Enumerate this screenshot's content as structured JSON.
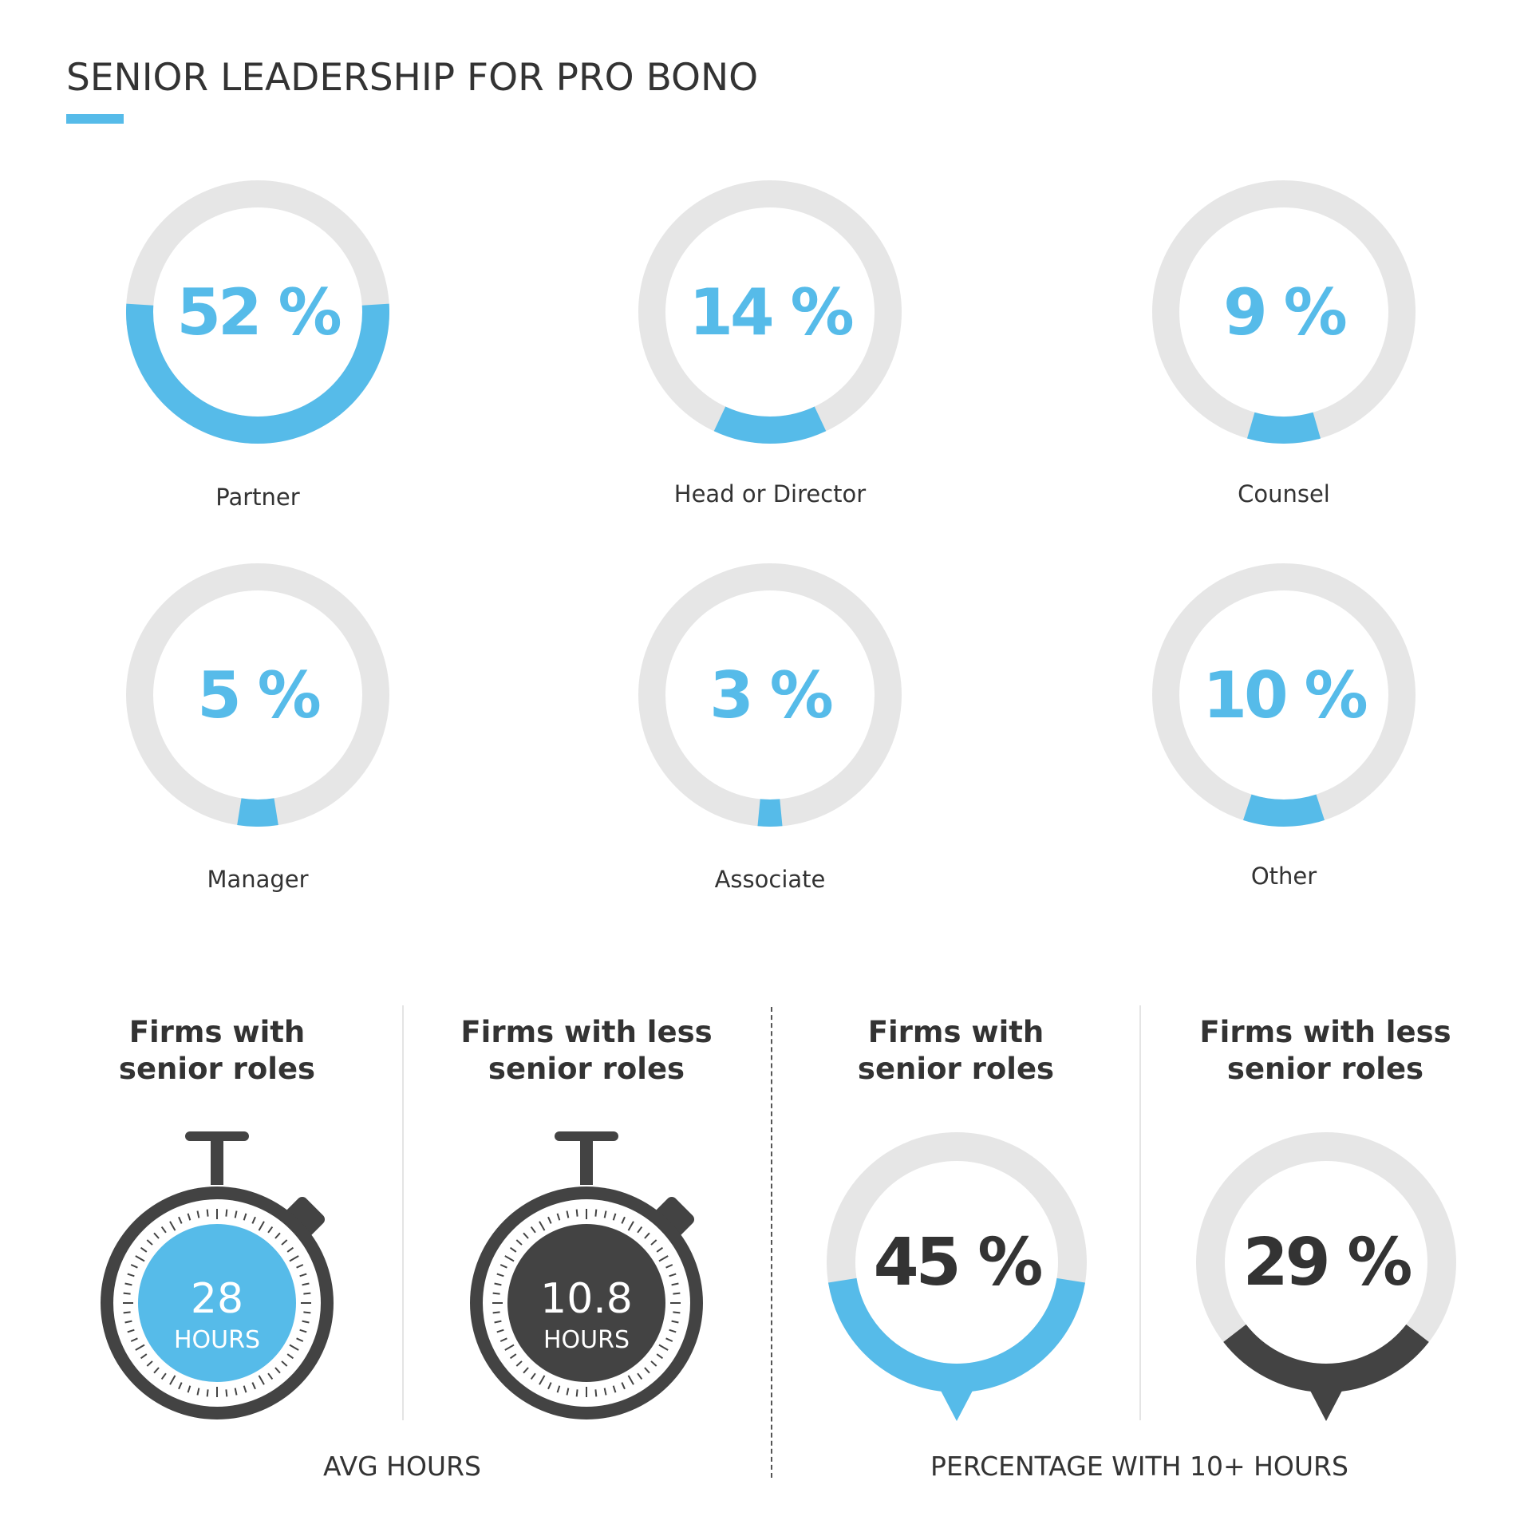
{
  "title": "SENIOR LEADERSHIP FOR PRO BONO",
  "colors": {
    "accent": "#56bbe9",
    "track": "#e6e6e6",
    "dark": "#434343",
    "text": "#333333"
  },
  "chart_data": [
    {
      "type": "donut",
      "title": "SENIOR LEADERSHIP FOR PRO BONO",
      "categories": [
        "Partner",
        "Head or Director",
        "Counsel",
        "Manager",
        "Associate",
        "Other"
      ],
      "values": [
        52,
        14,
        9,
        5,
        3,
        10
      ],
      "labels": [
        "52 %",
        "14 %",
        "9 %",
        "5 %",
        "3 %",
        "10 %"
      ],
      "unit": "%"
    },
    {
      "type": "stopwatch",
      "title": "AVG HOURS",
      "categories": [
        "Firms with senior roles",
        "Firms with less senior roles"
      ],
      "values": [
        28,
        10.8
      ],
      "labels": [
        "28",
        "10.8"
      ],
      "unit": "HOURS"
    },
    {
      "type": "donut",
      "title": "PERCENTAGE WITH 10+ HOURS",
      "categories": [
        "Firms with senior roles",
        "Firms with less senior roles"
      ],
      "values": [
        45,
        29
      ],
      "labels": [
        "45 %",
        "29 %"
      ],
      "unit": "%"
    }
  ],
  "donuts": [
    {
      "value": 52,
      "text": "52 %",
      "label": "Partner"
    },
    {
      "value": 14,
      "text": "14 %",
      "label": "Head or Director"
    },
    {
      "value": 9,
      "text": "9 %",
      "label": "Counsel"
    },
    {
      "value": 5,
      "text": "5 %",
      "label": "Manager"
    },
    {
      "value": 3,
      "text": "3 %",
      "label": "Associate"
    },
    {
      "value": 10,
      "text": "10 %",
      "label": "Other"
    }
  ],
  "bottom": {
    "columns": [
      {
        "heading_line1": "Firms with",
        "heading_line2": "senior roles"
      },
      {
        "heading_line1": "Firms with less",
        "heading_line2": "senior roles"
      },
      {
        "heading_line1": "Firms with",
        "heading_line2": "senior roles"
      },
      {
        "heading_line1": "Firms with less",
        "heading_line2": "senior roles"
      }
    ],
    "timers": [
      {
        "value": 28,
        "number": "28",
        "unit": "HOURS",
        "color": "accent"
      },
      {
        "value": 10.8,
        "number": "10.8",
        "unit": "HOURS",
        "color": "dark"
      }
    ],
    "pins": [
      {
        "value": 45,
        "text": "45 %",
        "color": "accent"
      },
      {
        "value": 29,
        "text": "29 %",
        "color": "dark"
      }
    ],
    "footer_left": "AVG HOURS",
    "footer_right": "PERCENTAGE WITH 10+ HOURS"
  }
}
